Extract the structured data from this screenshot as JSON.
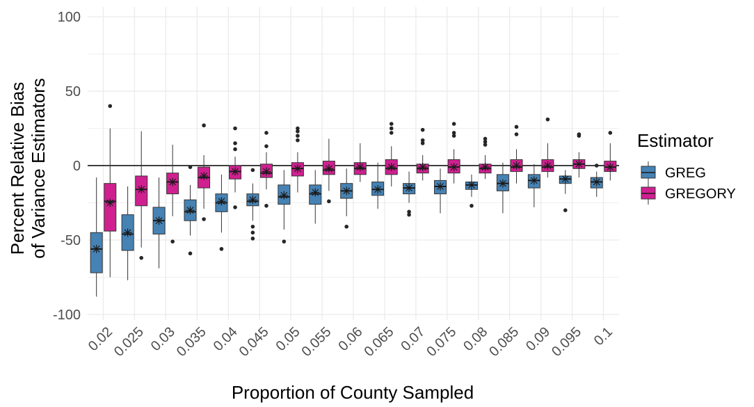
{
  "chart_data": {
    "type": "boxplot",
    "title": "",
    "xlabel": "Proportion of County Sampled",
    "ylabel_line1": "Percent Relative Bias",
    "ylabel_line2": "of Variance Estimators",
    "ylim": [
      -100,
      100
    ],
    "yticks": [
      100,
      50,
      0,
      -50,
      -100
    ],
    "reference_line": 0,
    "grid": true,
    "categories": [
      "0.02",
      "0.025",
      "0.03",
      "0.035",
      "0.04",
      "0.045",
      "0.05",
      "0.055",
      "0.06",
      "0.065",
      "0.07",
      "0.075",
      "0.08",
      "0.085",
      "0.09",
      "0.095",
      "0.1"
    ],
    "legend": {
      "title": "Estimator",
      "position": "right"
    },
    "series": [
      {
        "name": "GREG",
        "color": "#4682B4",
        "boxes": [
          {
            "lo": -88,
            "q1": -72,
            "med": -56,
            "q3": -45,
            "hi": -8,
            "mean": -56,
            "out": []
          },
          {
            "lo": -77,
            "q1": -57,
            "med": -46,
            "q3": -33,
            "hi": -14,
            "mean": -45,
            "out": []
          },
          {
            "lo": -69,
            "q1": -46,
            "med": -37,
            "q3": -28,
            "hi": -8,
            "mean": -37,
            "out": []
          },
          {
            "lo": -47,
            "q1": -37,
            "med": -31,
            "q3": -23,
            "hi": -13,
            "mean": -30,
            "out": [
              -59,
              -1
            ]
          },
          {
            "lo": -45,
            "q1": -31,
            "med": -25,
            "q3": -19,
            "hi": -6,
            "mean": -24,
            "out": [
              -56
            ]
          },
          {
            "lo": -37,
            "q1": -27,
            "med": -24,
            "q3": -19,
            "hi": -12,
            "mean": -23,
            "out": [
              -41,
              -45,
              -49,
              -3
            ]
          },
          {
            "lo": -43,
            "q1": -26,
            "med": -21,
            "q3": -13,
            "hi": -3,
            "mean": -20,
            "out": [
              -51
            ]
          },
          {
            "lo": -39,
            "q1": -26,
            "med": -19,
            "q3": -13,
            "hi": -3,
            "mean": -18,
            "out": []
          },
          {
            "lo": -34,
            "q1": -22,
            "med": -17,
            "q3": -12,
            "hi": -2,
            "mean": -17,
            "out": [
              -41
            ]
          },
          {
            "lo": -29,
            "q1": -20,
            "med": -16,
            "q3": -11,
            "hi": 2,
            "mean": -16,
            "out": []
          },
          {
            "lo": -25,
            "q1": -19,
            "med": -15,
            "q3": -12,
            "hi": -4,
            "mean": -15,
            "out": [
              -31,
              -33
            ]
          },
          {
            "lo": -32,
            "q1": -19,
            "med": -14,
            "q3": -10,
            "hi": -2,
            "mean": -14,
            "out": []
          },
          {
            "lo": -21,
            "q1": -16,
            "med": -13,
            "q3": -11,
            "hi": -6,
            "mean": -13,
            "out": [
              -27
            ]
          },
          {
            "lo": -32,
            "q1": -17,
            "med": -12,
            "q3": -6,
            "hi": 2,
            "mean": -12,
            "out": []
          },
          {
            "lo": -28,
            "q1": -15,
            "med": -10,
            "q3": -6,
            "hi": 1,
            "mean": -10,
            "out": []
          },
          {
            "lo": -19,
            "q1": -12,
            "med": -9,
            "q3": -7,
            "hi": -3,
            "mean": -9,
            "out": [
              -30
            ]
          },
          {
            "lo": -21,
            "q1": -15,
            "med": -11,
            "q3": -8,
            "hi": -4,
            "mean": -11,
            "out": [
              0
            ]
          }
        ]
      },
      {
        "name": "GREGORY",
        "color": "#D02090",
        "boxes": [
          {
            "lo": -75,
            "q1": -44,
            "med": -24,
            "q3": -12,
            "hi": 25,
            "mean": -25,
            "out": [
              40
            ]
          },
          {
            "lo": -55,
            "q1": -27,
            "med": -16,
            "q3": -7,
            "hi": 23,
            "mean": -16,
            "out": [
              -62
            ]
          },
          {
            "lo": -34,
            "q1": -19,
            "med": -11,
            "q3": -5,
            "hi": 14,
            "mean": -11,
            "out": [
              -51
            ]
          },
          {
            "lo": -29,
            "q1": -15,
            "med": -8,
            "q3": -1,
            "hi": 7,
            "mean": -7,
            "out": [
              -36,
              27
            ]
          },
          {
            "lo": -18,
            "q1": -9,
            "med": -4,
            "q3": 0,
            "hi": 6,
            "mean": -4,
            "out": [
              -28,
              11,
              15,
              25
            ]
          },
          {
            "lo": -16,
            "q1": -8,
            "med": -5,
            "q3": 1,
            "hi": 9,
            "mean": -4,
            "out": [
              -27,
              13,
              22
            ]
          },
          {
            "lo": -18,
            "q1": -7,
            "med": -2,
            "q3": 2,
            "hi": 9,
            "mean": -2,
            "out": [
              17,
              20,
              23,
              25
            ]
          },
          {
            "lo": -17,
            "q1": -6,
            "med": -3,
            "q3": 3,
            "hi": 18,
            "mean": -2,
            "out": [
              -24
            ]
          },
          {
            "lo": -11,
            "q1": -6,
            "med": -2,
            "q3": 2,
            "hi": 15,
            "mean": -1,
            "out": []
          },
          {
            "lo": -14,
            "q1": -6,
            "med": -2,
            "q3": 4,
            "hi": 13,
            "mean": -1,
            "out": [
              22,
              25,
              28
            ]
          },
          {
            "lo": -10,
            "q1": -5,
            "med": -2,
            "q3": 1,
            "hi": 7,
            "mean": -1,
            "out": [
              15,
              17,
              24
            ]
          },
          {
            "lo": -12,
            "q1": -5,
            "med": -1,
            "q3": 4,
            "hi": 11,
            "mean": -1,
            "out": [
              20,
              22,
              28
            ]
          },
          {
            "lo": -9,
            "q1": -5,
            "med": -2,
            "q3": 1,
            "hi": 7,
            "mean": -1,
            "out": [
              14,
              16,
              18
            ]
          },
          {
            "lo": -12,
            "q1": -4,
            "med": -1,
            "q3": 4,
            "hi": 11,
            "mean": 0,
            "out": [
              21,
              26
            ]
          },
          {
            "lo": -8,
            "q1": -4,
            "med": -1,
            "q3": 4,
            "hi": 15,
            "mean": 0,
            "out": [
              31
            ]
          },
          {
            "lo": -8,
            "q1": -2,
            "med": 1,
            "q3": 4,
            "hi": 9,
            "mean": 1,
            "out": [
              20,
              21
            ]
          },
          {
            "lo": -10,
            "q1": -4,
            "med": -1,
            "q3": 3,
            "hi": 15,
            "mean": -1,
            "out": [
              22
            ]
          }
        ]
      }
    ]
  }
}
